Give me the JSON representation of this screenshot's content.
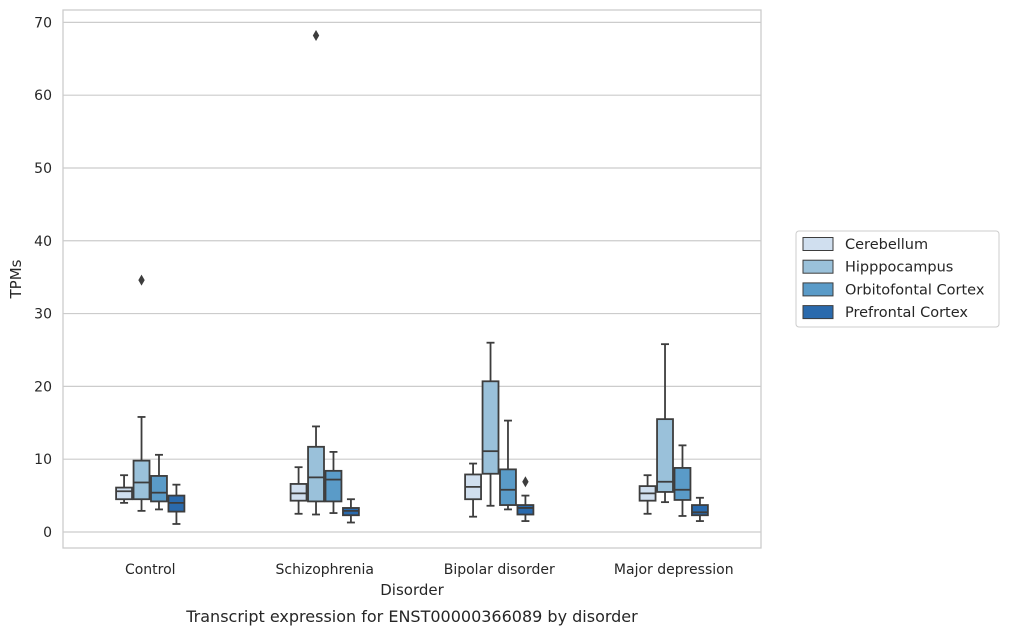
{
  "chart_data": {
    "type": "box",
    "xlabel": "Disorder",
    "ylabel": "TPMs",
    "caption": "Transcript expression for ENST00000366089 by disorder",
    "ylim": [
      -2.2,
      71.7
    ],
    "yticks": [
      0,
      10,
      20,
      30,
      40,
      50,
      60,
      70
    ],
    "grid": "horizontal",
    "legend_position": "right",
    "categories": [
      "Control",
      "Schizophrenia",
      "Bipolar disorder",
      "Major depression"
    ],
    "series": [
      {
        "name": "Cerebellum",
        "color": "#d0dfef",
        "boxes": [
          {
            "min": 4.0,
            "q1": 4.5,
            "median": 5.6,
            "q3": 6.1,
            "max": 7.8,
            "outliers": []
          },
          {
            "min": 2.5,
            "q1": 4.3,
            "median": 5.3,
            "q3": 6.6,
            "max": 8.9,
            "outliers": []
          },
          {
            "min": 2.1,
            "q1": 4.5,
            "median": 6.2,
            "q3": 7.9,
            "max": 9.4,
            "outliers": []
          },
          {
            "min": 2.5,
            "q1": 4.3,
            "median": 5.3,
            "q3": 6.3,
            "max": 7.8,
            "outliers": []
          }
        ]
      },
      {
        "name": "Hipppocampus",
        "color": "#9ac1da",
        "boxes": [
          {
            "min": 2.9,
            "q1": 4.5,
            "median": 6.8,
            "q3": 9.8,
            "max": 15.8,
            "outliers": [
              34.6
            ]
          },
          {
            "min": 2.4,
            "q1": 4.2,
            "median": 7.5,
            "q3": 11.7,
            "max": 14.5,
            "outliers": [
              68.2
            ]
          },
          {
            "min": 3.6,
            "q1": 8.0,
            "median": 11.1,
            "q3": 20.7,
            "max": 26.0,
            "outliers": []
          },
          {
            "min": 4.1,
            "q1": 5.5,
            "median": 6.9,
            "q3": 15.5,
            "max": 25.8,
            "outliers": []
          }
        ]
      },
      {
        "name": "Orbitofontal Cortex",
        "color": "#5a9bc8",
        "boxes": [
          {
            "min": 3.1,
            "q1": 4.2,
            "median": 5.4,
            "q3": 7.7,
            "max": 10.6,
            "outliers": []
          },
          {
            "min": 2.6,
            "q1": 4.2,
            "median": 7.2,
            "q3": 8.4,
            "max": 11.0,
            "outliers": []
          },
          {
            "min": 3.1,
            "q1": 3.7,
            "median": 5.8,
            "q3": 8.6,
            "max": 15.3,
            "outliers": []
          },
          {
            "min": 2.2,
            "q1": 4.4,
            "median": 5.8,
            "q3": 8.8,
            "max": 11.9,
            "outliers": []
          }
        ]
      },
      {
        "name": "Prefrontal Cortex",
        "color": "#2a6aad",
        "boxes": [
          {
            "min": 1.1,
            "q1": 2.8,
            "median": 4.0,
            "q3": 5.0,
            "max": 6.5,
            "outliers": []
          },
          {
            "min": 1.3,
            "q1": 2.3,
            "median": 2.9,
            "q3": 3.3,
            "max": 4.5,
            "outliers": []
          },
          {
            "min": 1.5,
            "q1": 2.4,
            "median": 3.3,
            "q3": 3.7,
            "max": 5.0,
            "outliers": [
              6.9
            ]
          },
          {
            "min": 1.5,
            "q1": 2.3,
            "median": 2.7,
            "q3": 3.7,
            "max": 4.7,
            "outliers": []
          }
        ]
      }
    ]
  }
}
